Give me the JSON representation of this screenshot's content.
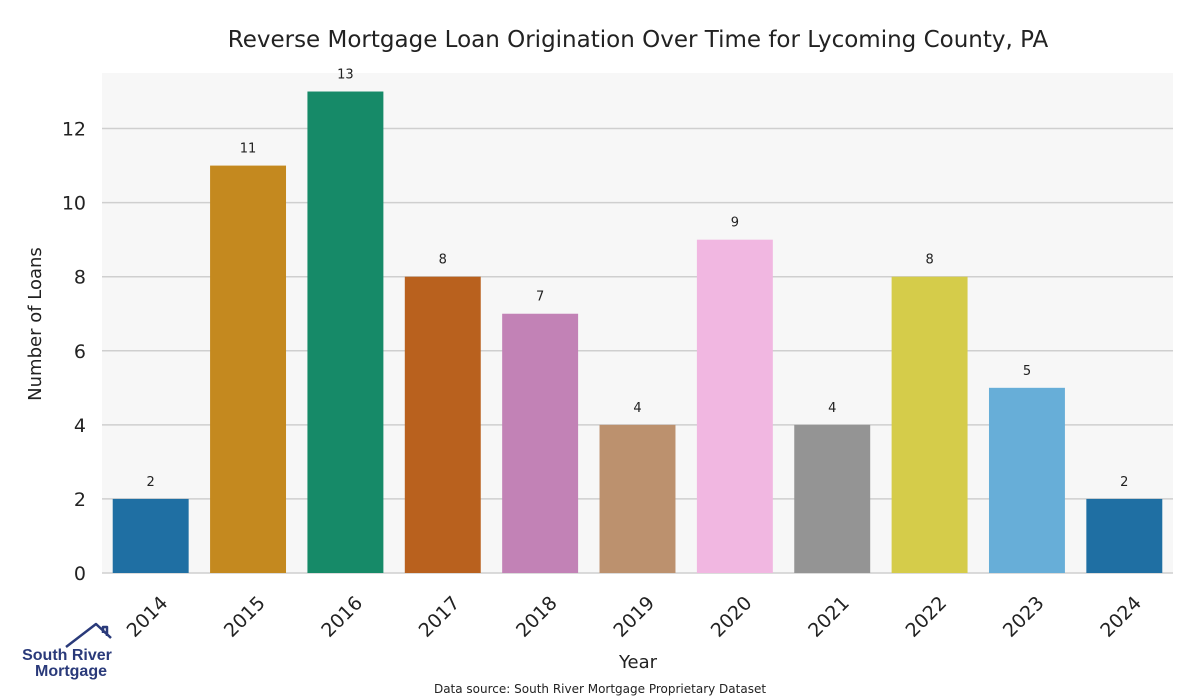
{
  "chart_data": {
    "type": "bar",
    "title": "Reverse Mortgage Loan Origination Over Time for Lycoming County, PA",
    "xlabel": "Year",
    "ylabel": "Number of Loans",
    "categories": [
      "2014",
      "2015",
      "2016",
      "2017",
      "2018",
      "2019",
      "2020",
      "2021",
      "2022",
      "2023",
      "2024"
    ],
    "values": [
      2,
      11,
      13,
      8,
      7,
      4,
      9,
      4,
      8,
      5,
      2
    ],
    "data_labels": [
      "2",
      "11",
      "13",
      "8",
      "7",
      "4",
      "9",
      "4",
      "8",
      "5",
      "2"
    ],
    "colors": [
      "#1f6fa3",
      "#c4891f",
      "#168a68",
      "#b9611e",
      "#c282b6",
      "#bc916e",
      "#f1b7e1",
      "#949494",
      "#d5cc4a",
      "#67aed8",
      "#1f6fa3"
    ],
    "ylim": [
      0,
      13.5
    ],
    "yticks": [
      0,
      2,
      4,
      6,
      8,
      10,
      12
    ],
    "ytick_labels": [
      "0",
      "2",
      "4",
      "6",
      "8",
      "10",
      "12"
    ],
    "grid": true,
    "background": "#f7f7f7",
    "source": "Data source: South River Mortgage Proprietary Dataset"
  },
  "logo": {
    "line1": "South River",
    "line2": "Mortgage",
    "color": "#2a3a7a"
  }
}
